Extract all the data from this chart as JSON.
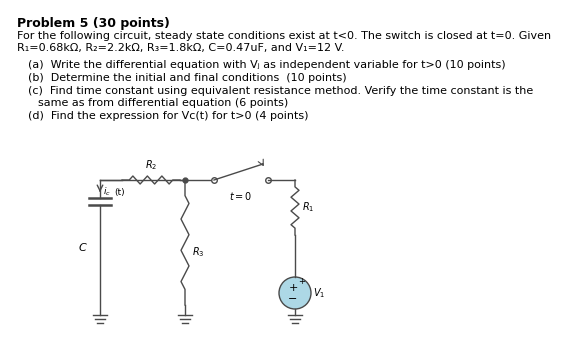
{
  "title": "Problem 5 (30 points)",
  "intro_line1": "For the following circuit, steady state conditions exist at t<0. The switch is closed at t=0. Given",
  "intro_line2": "R₁=0.68kΩ, R₂=2.2kΩ, R₃=1.8kΩ, C=0.47uF, and V₁=12 V.",
  "part_a": "(a)  Write the differential equation with Vⱼ as independent variable for t>0 (10 points)",
  "part_b": "(b)  Determine the initial and final conditions  (10 points)",
  "part_c1": "(c)  Find time constant using equivalent resistance method. Verify the time constant is the",
  "part_c2": "       same as from differential equation (6 points)",
  "part_d": "(d)  Find the expression for Vc(t) for t>0 (4 points)",
  "bg_color": "#ffffff",
  "text_color": "#000000",
  "circuit_color": "#4a4a4a"
}
